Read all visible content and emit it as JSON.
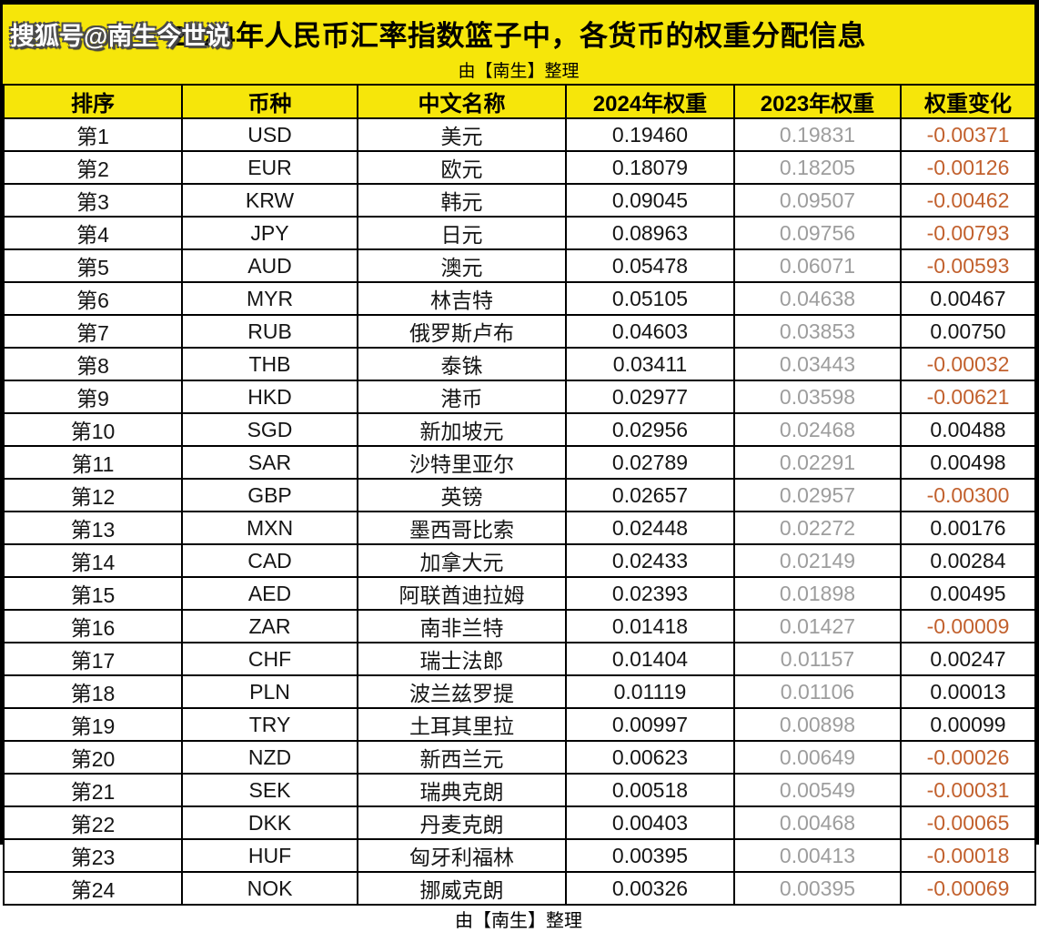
{
  "watermark": "搜狐号@南生今世说",
  "header": {
    "title": "2024年人民币汇率指数篮子中，各货币的权重分配信息",
    "subtitle": "由【南生】整理"
  },
  "chart_data": {
    "type": "table",
    "title": "2024年人民币汇率指数篮子中，各货币的权重分配信息",
    "subtitle": "由【南生】整理",
    "columns": [
      "排序",
      "币种",
      "中文名称",
      "2024年权重",
      "2023年权重",
      "权重变化"
    ],
    "rows": [
      [
        "第1",
        "USD",
        "美元",
        "0.19460",
        "0.19831",
        "-0.00371"
      ],
      [
        "第2",
        "EUR",
        "欧元",
        "0.18079",
        "0.18205",
        "-0.00126"
      ],
      [
        "第3",
        "KRW",
        "韩元",
        "0.09045",
        "0.09507",
        "-0.00462"
      ],
      [
        "第4",
        "JPY",
        "日元",
        "0.08963",
        "0.09756",
        "-0.00793"
      ],
      [
        "第5",
        "AUD",
        "澳元",
        "0.05478",
        "0.06071",
        "-0.00593"
      ],
      [
        "第6",
        "MYR",
        "林吉特",
        "0.05105",
        "0.04638",
        "0.00467"
      ],
      [
        "第7",
        "RUB",
        "俄罗斯卢布",
        "0.04603",
        "0.03853",
        "0.00750"
      ],
      [
        "第8",
        "THB",
        "泰铢",
        "0.03411",
        "0.03443",
        "-0.00032"
      ],
      [
        "第9",
        "HKD",
        "港币",
        "0.02977",
        "0.03598",
        "-0.00621"
      ],
      [
        "第10",
        "SGD",
        "新加坡元",
        "0.02956",
        "0.02468",
        "0.00488"
      ],
      [
        "第11",
        "SAR",
        "沙特里亚尔",
        "0.02789",
        "0.02291",
        "0.00498"
      ],
      [
        "第12",
        "GBP",
        "英镑",
        "0.02657",
        "0.02957",
        "-0.00300"
      ],
      [
        "第13",
        "MXN",
        "墨西哥比索",
        "0.02448",
        "0.02272",
        "0.00176"
      ],
      [
        "第14",
        "CAD",
        "加拿大元",
        "0.02433",
        "0.02149",
        "0.00284"
      ],
      [
        "第15",
        "AED",
        "阿联酋迪拉姆",
        "0.02393",
        "0.01898",
        "0.00495"
      ],
      [
        "第16",
        "ZAR",
        "南非兰特",
        "0.01418",
        "0.01427",
        "-0.00009"
      ],
      [
        "第17",
        "CHF",
        "瑞士法郎",
        "0.01404",
        "0.01157",
        "0.00247"
      ],
      [
        "第18",
        "PLN",
        "波兰兹罗提",
        "0.01119",
        "0.01106",
        "0.00013"
      ],
      [
        "第19",
        "TRY",
        "土耳其里拉",
        "0.00997",
        "0.00898",
        "0.00099"
      ],
      [
        "第20",
        "NZD",
        "新西兰元",
        "0.00623",
        "0.00649",
        "-0.00026"
      ],
      [
        "第21",
        "SEK",
        "瑞典克朗",
        "0.00518",
        "0.00549",
        "-0.00031"
      ],
      [
        "第22",
        "DKK",
        "丹麦克朗",
        "0.00403",
        "0.00468",
        "-0.00065"
      ],
      [
        "第23",
        "HUF",
        "匈牙利福林",
        "0.00395",
        "0.00413",
        "-0.00018"
      ],
      [
        "第24",
        "NOK",
        "挪威克朗",
        "0.00326",
        "0.00395",
        "-0.00069"
      ]
    ]
  },
  "footer": "由【南生】整理",
  "colors": {
    "accent_yellow": "#F6E60A",
    "negative_orange": "#C2612E",
    "previous_year_gray": "#9D9D9D",
    "border_black": "#000000"
  }
}
